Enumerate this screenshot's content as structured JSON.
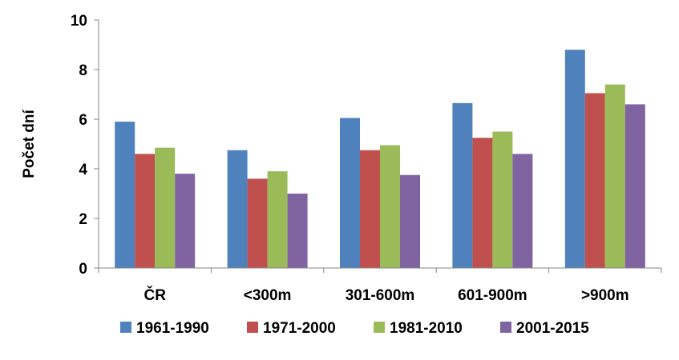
{
  "chart_data": {
    "type": "bar",
    "title": "",
    "xlabel": "",
    "ylabel": "Počet dní",
    "ylim": [
      0,
      10
    ],
    "yticks": [
      "0",
      "2",
      "4",
      "6",
      "8",
      "10"
    ],
    "grid": false,
    "legend_position": "bottom",
    "categories": [
      "ČR",
      "<300m",
      "301-600m",
      "601-900m",
      ">900m"
    ],
    "series": [
      {
        "name": "1961-1990",
        "color": "#4F81BD",
        "values": [
          5.9,
          4.75,
          6.05,
          6.65,
          8.8
        ]
      },
      {
        "name": "1971-2000",
        "color": "#C0504D",
        "values": [
          4.6,
          3.6,
          4.75,
          5.25,
          7.05
        ]
      },
      {
        "name": "1981-2010",
        "color": "#9BBB59",
        "values": [
          4.85,
          3.9,
          4.95,
          5.5,
          7.4
        ]
      },
      {
        "name": "2001-2015",
        "color": "#8064A2",
        "values": [
          3.8,
          3.0,
          3.75,
          4.6,
          6.6
        ]
      }
    ]
  }
}
